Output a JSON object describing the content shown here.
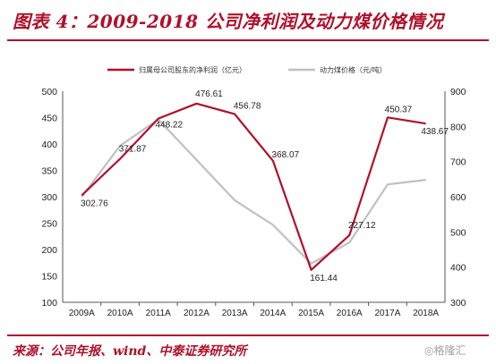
{
  "header": {
    "title": "图表 4：2009-2018 公司净利润及动力煤价格情况"
  },
  "footer": {
    "source": "来源：公司年报、wind、中泰证券研究所",
    "watermark": "◎格隆汇"
  },
  "colors": {
    "primary_series": "#b0102a",
    "secondary_series": "#c0c0c0",
    "accent": "#b0102a"
  },
  "chart_data": {
    "type": "line",
    "categories": [
      "2009A",
      "2010A",
      "2011A",
      "2012A",
      "2013A",
      "2014A",
      "2015A",
      "2016A",
      "2017A",
      "2018A"
    ],
    "y_left": {
      "min": 100,
      "max": 500,
      "step": 50,
      "ticks": [
        "100",
        "150",
        "200",
        "250",
        "300",
        "350",
        "400",
        "450",
        "500"
      ]
    },
    "y_right": {
      "min": 300,
      "max": 900,
      "step": 100,
      "ticks": [
        "300",
        "400",
        "500",
        "600",
        "700",
        "800",
        "900"
      ]
    },
    "legend_placement": "top",
    "grid": false,
    "series": [
      {
        "name": "归属母公司股东的净利润（亿元）",
        "axis": "left",
        "values": [
          302.76,
          371.87,
          448.22,
          476.61,
          456.78,
          368.07,
          161.44,
          227.12,
          450.37,
          438.67
        ],
        "labels": [
          "302.76",
          "371.87",
          "448.22",
          "476.61",
          "456.78",
          "368.07",
          "161.44",
          "227.12",
          "450.37",
          "438.67"
        ]
      },
      {
        "name": "动力煤价格（元/吨）",
        "axis": "right",
        "values": [
          600,
          745,
          820,
          705,
          590,
          520,
          410,
          470,
          635,
          648
        ]
      }
    ]
  }
}
